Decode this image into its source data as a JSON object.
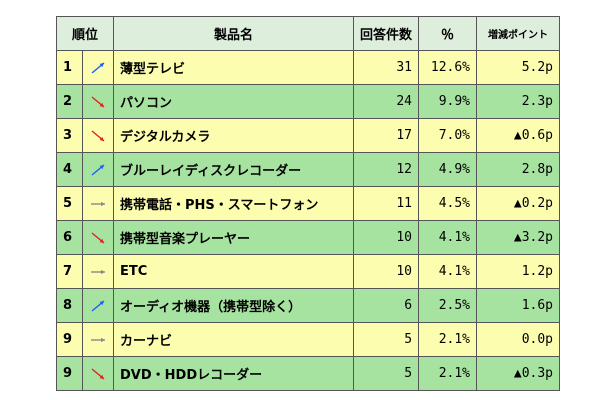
{
  "header": {
    "rank": "順位",
    "product": "製品名",
    "count": "回答件数",
    "percent": "％",
    "points": "増減ポイント"
  },
  "rows": [
    {
      "rank": "1",
      "trend": "up",
      "product": "薄型テレビ",
      "count": "31",
      "percent": "12.6%",
      "points": "5.2p"
    },
    {
      "rank": "2",
      "trend": "down",
      "product": "パソコン",
      "count": "24",
      "percent": "9.9%",
      "points": "2.3p"
    },
    {
      "rank": "3",
      "trend": "down",
      "product": "デジタルカメラ",
      "count": "17",
      "percent": "7.0%",
      "points": "▲0.6p"
    },
    {
      "rank": "4",
      "trend": "up",
      "product": "ブルーレイディスクレコーダー",
      "count": "12",
      "percent": "4.9%",
      "points": "2.8p"
    },
    {
      "rank": "5",
      "trend": "flat",
      "product": "携帯電話・PHS・スマートフォン",
      "count": "11",
      "percent": "4.5%",
      "points": "▲0.2p"
    },
    {
      "rank": "6",
      "trend": "down",
      "product": "携帯型音楽プレーヤー",
      "count": "10",
      "percent": "4.1%",
      "points": "▲3.2p"
    },
    {
      "rank": "7",
      "trend": "flat",
      "product": "ETC",
      "count": "10",
      "percent": "4.1%",
      "points": "1.2p"
    },
    {
      "rank": "8",
      "trend": "up",
      "product": "オーディオ機器（携帯型除く）",
      "count": "6",
      "percent": "2.5%",
      "points": "1.6p"
    },
    {
      "rank": "9",
      "trend": "flat",
      "product": "カーナビ",
      "count": "5",
      "percent": "2.1%",
      "points": "0.0p"
    },
    {
      "rank": "9",
      "trend": "down",
      "product": "DVD・HDDレコーダー",
      "count": "5",
      "percent": "2.1%",
      "points": "▲0.3p"
    }
  ],
  "colors": {
    "row_odd": "#fdfdb0",
    "row_even": "#a6e3a0",
    "arrow_up": "#1a5cff",
    "arrow_down": "#e02020",
    "arrow_flat": "#888888",
    "points_negative": "#cc0000",
    "points_positive": "#1a1aff"
  }
}
